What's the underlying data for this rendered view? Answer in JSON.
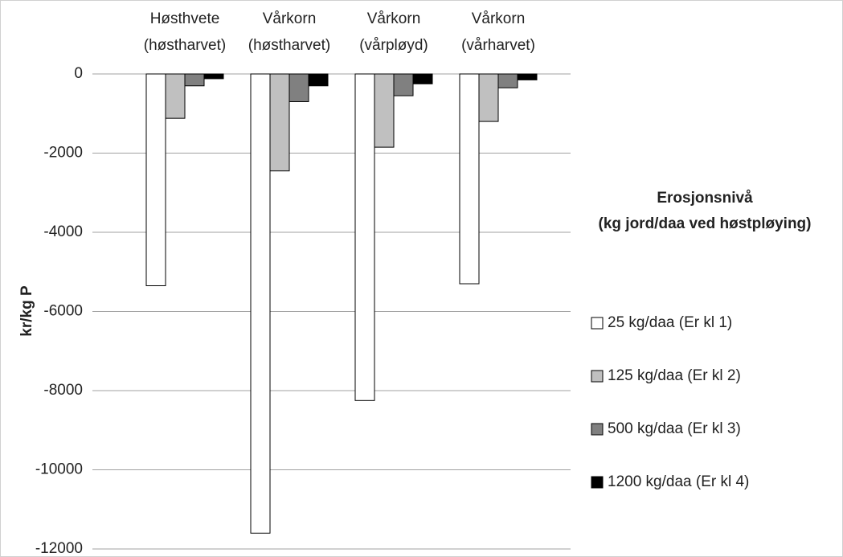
{
  "chart_data": {
    "type": "bar",
    "categories": [
      [
        "Høsthvete",
        "(høstharvet)"
      ],
      [
        "Vårkorn",
        "(høstharvet)"
      ],
      [
        "Vårkorn",
        "(vårpløyd)"
      ],
      [
        "Vårkorn",
        "(vårharvet)"
      ]
    ],
    "series": [
      {
        "name": "25 kg/daa (Er kl 1)",
        "color": "#ffffff",
        "values": [
          -5350,
          -11600,
          -8250,
          -5300
        ]
      },
      {
        "name": "125 kg/daa (Er kl 2)",
        "color": "#c0c0c0",
        "values": [
          -1120,
          -2450,
          -1850,
          -1200
        ]
      },
      {
        "name": "500 kg/daa (Er kl 3)",
        "color": "#808080",
        "values": [
          -300,
          -700,
          -550,
          -350
        ]
      },
      {
        "name": "1200 kg/daa (Er kl 4)",
        "color": "#000000",
        "values": [
          -120,
          -300,
          -250,
          -150
        ]
      }
    ],
    "ylabel": "kr/kg P",
    "legend_title": [
      "Erosjonsnivå",
      "(kg jord/daa ved høstpløying)"
    ],
    "ylim": [
      -12000,
      0
    ],
    "yticks": [
      0,
      -2000,
      -4000,
      -6000,
      -8000,
      -10000,
      -12000
    ],
    "grid": true,
    "legend": "right"
  }
}
